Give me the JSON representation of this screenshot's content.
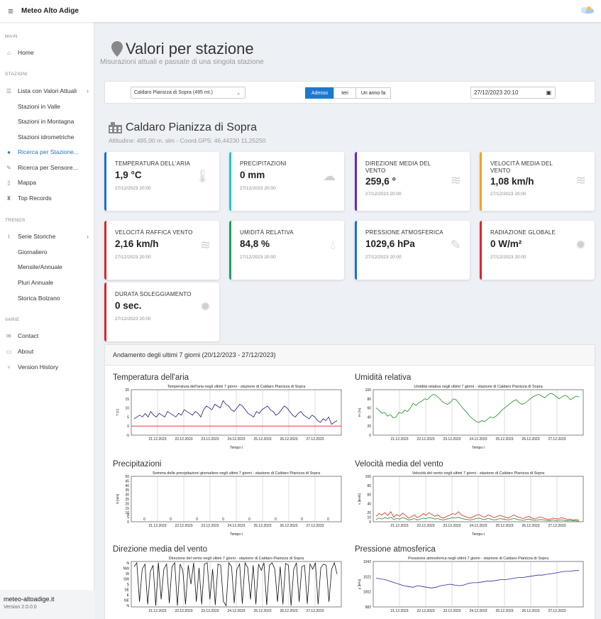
{
  "app": {
    "title": "Meteo Alto Adige"
  },
  "sidebar": {
    "sections": [
      {
        "title": "MAIN"
      },
      {
        "title": "STAZIONI"
      },
      {
        "title": "TRENDS"
      },
      {
        "title": "VARIE"
      }
    ],
    "items": [
      {
        "label": "Home",
        "icon": "home-icon"
      },
      {
        "label": "Lista con Valori Attuali",
        "icon": "list-icon"
      },
      {
        "label": "Stazioni in Valle"
      },
      {
        "label": "Stazioni in Montagna"
      },
      {
        "label": "Stazioni idrometriche"
      },
      {
        "label": "Ricerca per Stazione...",
        "icon": "map-marker-icon",
        "active": true
      },
      {
        "label": "Ricerca per Sensore...",
        "icon": "pen-icon"
      },
      {
        "label": "Mappa",
        "icon": "map-icon"
      },
      {
        "label": "Top Records",
        "icon": "trophy-icon"
      },
      {
        "label": "Serie Storiche",
        "icon": "chart-line-icon"
      },
      {
        "label": "Giornaliero"
      },
      {
        "label": "Mensile/Annuale"
      },
      {
        "label": "Pluri Annuale"
      },
      {
        "label": "Storica Bolzano"
      },
      {
        "label": "Contact",
        "icon": "envelope-icon"
      },
      {
        "label": "About",
        "icon": "laptop-icon"
      },
      {
        "label": "Version History",
        "icon": "branch-icon"
      }
    ],
    "footer": {
      "site": "meteo-altoadige.it",
      "version": "Version 2.0.0.0"
    }
  },
  "page": {
    "title": "Valori per stazione",
    "subtitle": "Misurazioni attuali e passate di una singola stazione"
  },
  "filters": {
    "station_selected": "Caldaro Pianizza di Sopra (495 mt.)",
    "time_buttons": [
      {
        "label": "Adesso",
        "active": true
      },
      {
        "label": "Ieri",
        "active": false
      },
      {
        "label": "Un anno fa",
        "active": false
      }
    ],
    "datetime": "27/12/2023 20:10"
  },
  "station": {
    "name": "Caldaro Pianizza di Sopra",
    "meta": "Altitudine: 495,00 m. slm - Coord.GPS: 46,44230 11,25250"
  },
  "cards": [
    {
      "label": "TEMPERATURA DELL'ARIA",
      "value": "1,9 °C",
      "time": "27/12/2023 20:00",
      "color": "#1e6fd0",
      "icon": "thermometer-icon"
    },
    {
      "label": "PRECIPITAZIONI",
      "value": "0 mm",
      "time": "27/12/2023 20:00",
      "color": "#28c5c9",
      "icon": "cloud-rain-icon"
    },
    {
      "label": "DIREZIONE MEDIA DEL VENTO",
      "value": "259,6 °",
      "time": "27/12/2023 20:00",
      "color": "#6f24b8",
      "icon": "wind-icon"
    },
    {
      "label": "VELOCITÀ MEDIA DEL VENTO",
      "value": "1,08 km/h",
      "time": "27/12/2023 20:00",
      "color": "#f2a41c",
      "icon": "wind-icon"
    },
    {
      "label": "VELOCITÀ RAFFICA VENTO",
      "value": "2,16 km/h",
      "time": "27/12/2023 20:00",
      "color": "#d9272e",
      "icon": "wind-icon"
    },
    {
      "label": "UMIDITÀ RELATIVA",
      "value": "84,8 %",
      "time": "27/12/2023 20:00",
      "color": "#20a35a",
      "icon": "drop-icon"
    },
    {
      "label": "PRESSIONE ATMOSFERICA",
      "value": "1029,6 hPa",
      "time": "27/12/2023 20:00",
      "color": "#1e6fd0",
      "icon": "eyedropper-icon"
    },
    {
      "label": "RADIAZIONE GLOBALE",
      "value": "0 W/m²",
      "time": "27/12/2023 20:00",
      "color": "#d9272e",
      "icon": "sun-icon"
    },
    {
      "label": "DURATA SOLEGGIAMENTO",
      "value": "0 sec.",
      "time": "27/12/2023 20:00",
      "color": "#d9272e",
      "icon": "sun-icon"
    }
  ],
  "charts_panel": {
    "title": "Andamento degli ultimi 7 giorni (20/12/2023 - 27/12/2023)"
  },
  "chart_data": [
    {
      "heading": "Temperatura dell'aria",
      "type": "line",
      "title": "Temperatura dell'aria negli ultimi 7 giorni - stazione di Caldaro Pianizza di Sopra",
      "xlabel": "Tempo t",
      "ylabel": "T [C]",
      "x_ticks": [
        "21.12.2023",
        "22.12.2023",
        "23.12.2023",
        "24.12.2023",
        "25.12.2023",
        "26.12.2023",
        "27.12.2023"
      ],
      "ylim": [
        -5,
        20
      ],
      "y_ticks": [
        -5,
        0,
        5,
        10,
        15,
        20
      ],
      "series": [
        {
          "color": "#1a1a80",
          "values": [
            4,
            5,
            6,
            5,
            7,
            5,
            8,
            6,
            5,
            7,
            6,
            5,
            8,
            7,
            6,
            5,
            7,
            6,
            9,
            8,
            7,
            6,
            8,
            7,
            5,
            9,
            11,
            10,
            9,
            12,
            11,
            10,
            14,
            12,
            11,
            9,
            8,
            10,
            12,
            11,
            9,
            7,
            6,
            5,
            8,
            7,
            9,
            10,
            11,
            9,
            8,
            6,
            7,
            9,
            11,
            10,
            8,
            6,
            5,
            7,
            8,
            6,
            5,
            4,
            6,
            5,
            3,
            2,
            4,
            3,
            5,
            1,
            2,
            3
          ]
        }
      ],
      "hline": {
        "value": 0,
        "color": "#e32222"
      }
    },
    {
      "heading": "Umidità relativa",
      "type": "line",
      "title": "Umidità relativa negli ultimi 7 giorni - stazione di Caldaro Pianizza di Sopra",
      "xlabel": "Tempo t",
      "ylabel": "rH [%]",
      "x_ticks": [
        "21.12.2023",
        "22.12.2023",
        "23.12.2023",
        "24.12.2023",
        "25.12.2023",
        "26.12.2023",
        "27.12.2023"
      ],
      "ylim": [
        0,
        100
      ],
      "y_ticks": [
        0,
        20,
        40,
        60,
        80,
        100
      ],
      "series": [
        {
          "color": "#1e8a1e",
          "values": [
            60,
            55,
            48,
            50,
            42,
            45,
            38,
            40,
            50,
            48,
            55,
            52,
            60,
            70,
            65,
            72,
            75,
            80,
            78,
            85,
            90,
            88,
            82,
            75,
            70,
            68,
            72,
            80,
            78,
            70,
            62,
            55,
            48,
            40,
            35,
            30,
            28,
            32,
            30,
            35,
            40,
            38,
            42,
            48,
            55,
            60,
            65,
            70,
            75,
            78,
            72,
            68,
            70,
            75,
            80,
            85,
            88,
            90,
            86,
            82,
            88,
            92,
            90,
            85,
            80,
            84,
            88,
            85,
            78,
            82,
            86,
            84
          ]
        }
      ]
    },
    {
      "heading": "Precipitazioni",
      "type": "bar",
      "title": "Somma delle precipitazioni giornaliere negli ultimi 7 giorni - stazione di Caldaro Pianizza di Sopra",
      "xlabel": "Tempo t",
      "ylabel": "N [mm]",
      "x_ticks": [
        "21.12.2023",
        "22.12.2023",
        "23.12.2023",
        "24.12.2023",
        "25.12.2023",
        "26.12.2023",
        "27.12.2023"
      ],
      "ylim": [
        0,
        50
      ],
      "y_ticks": [
        0,
        5,
        8,
        10,
        15,
        20,
        25,
        30,
        35,
        40,
        45,
        50
      ],
      "values": [
        0,
        0,
        0,
        0,
        0,
        0,
        0,
        0
      ]
    },
    {
      "heading": "Velocità media del vento",
      "type": "line",
      "title": "Velocità del vento negli ultimi 7 giorni - stazione di Caldaro Pianizza di Sopra",
      "xlabel": "Tempo t",
      "ylabel": "v [km/h]",
      "x_ticks": [
        "21.12.2023",
        "22.12.2023",
        "23.12.2023",
        "24.12.2023",
        "25.12.2023",
        "26.12.2023",
        "27.12.2023"
      ],
      "ylim": [
        0,
        100
      ],
      "y_ticks": [
        0,
        10,
        20,
        40,
        60,
        80,
        100
      ],
      "series": [
        {
          "color": "#e02020",
          "values": [
            12,
            18,
            15,
            20,
            14,
            22,
            10,
            16,
            12,
            19,
            14,
            8,
            11,
            15,
            9,
            12,
            18,
            14,
            20,
            16,
            12,
            15,
            10,
            8,
            12,
            14,
            18,
            16,
            22,
            15,
            12,
            10,
            8,
            11,
            14,
            16,
            12,
            10,
            15,
            13,
            9,
            11,
            14,
            12,
            10,
            8,
            12,
            15,
            11,
            9,
            7,
            10,
            12,
            8,
            6,
            9,
            11,
            8,
            6,
            5,
            8,
            7,
            6,
            9,
            7,
            5,
            6,
            4,
            5,
            3
          ]
        },
        {
          "color": "#1e8a1e",
          "values": [
            5,
            8,
            6,
            9,
            7,
            10,
            5,
            7,
            6,
            9,
            7,
            4,
            5,
            7,
            4,
            6,
            8,
            7,
            9,
            8,
            6,
            7,
            5,
            4,
            6,
            7,
            9,
            8,
            10,
            7,
            6,
            5,
            4,
            5,
            7,
            8,
            6,
            5,
            7,
            6,
            4,
            5,
            7,
            6,
            5,
            4,
            6,
            7,
            5,
            4,
            3,
            5,
            6,
            4,
            3,
            4,
            5,
            4,
            3,
            2,
            4,
            3,
            3,
            4,
            3,
            2,
            3,
            2,
            2,
            1
          ]
        }
      ]
    },
    {
      "heading": "Direzione media del vento",
      "type": "line",
      "title": "Direzione del vento negli ultimi 7 giorni - stazione di Caldaro Pianizza di Sopra",
      "xlabel": "",
      "ylabel": "",
      "x_ticks": [
        "21.12.2023",
        "22.12.2023",
        "23.12.2023",
        "24.12.2023",
        "25.12.2023",
        "26.12.2023",
        "27.12.2023"
      ],
      "y_ticks": [
        "N",
        "NW",
        "W",
        "SW",
        "S",
        "SE",
        "E",
        "NE",
        "N"
      ],
      "ylim": [
        0,
        360
      ],
      "series": [
        {
          "color": "#111111",
          "values": [
            320,
            350,
            40,
            300,
            340,
            20,
            280,
            330,
            10,
            350,
            60,
            300,
            340,
            30,
            320,
            350,
            10,
            340,
            290,
            20,
            330,
            180,
            350,
            40,
            310,
            20,
            340,
            350,
            60,
            300,
            15,
            340,
            330,
            45,
            10,
            350,
            320,
            30,
            300,
            340,
            25,
            350,
            310,
            60,
            330,
            20,
            340,
            290,
            350,
            15,
            330,
            350,
            300,
            40,
            320,
            20,
            345,
            330,
            10,
            300,
            350,
            40,
            320,
            330,
            25,
            340,
            300,
            350,
            20,
            310,
            340,
            330,
            40,
            300,
            350,
            260
          ]
        }
      ]
    },
    {
      "heading": "Pressione atmosferica",
      "type": "line",
      "title": "Pressione atmosferica negli ultimi 7 giorni - stazione di Caldaro Pianizza di Sopra",
      "xlabel": "",
      "ylabel": "p [hPa]",
      "x_ticks": [
        "21.12.2023",
        "22.12.2023",
        "23.12.2023",
        "24.12.2023",
        "25.12.2023",
        "26.12.2023",
        "27.12.2023"
      ],
      "ylim": [
        982,
        1042
      ],
      "y_ticks": [
        982,
        1002,
        1022,
        1042
      ],
      "series": [
        {
          "color": "#2828a0",
          "values": [
            1020,
            1019,
            1018,
            1016,
            1014,
            1012,
            1010,
            1009,
            1008,
            1010,
            1009,
            1008,
            1007,
            1008,
            1010,
            1011,
            1012,
            1011,
            1010,
            1011,
            1013,
            1014,
            1014,
            1015,
            1016,
            1016,
            1017,
            1018,
            1018,
            1019,
            1020,
            1021,
            1021,
            1022,
            1023,
            1024,
            1024,
            1025,
            1026,
            1027,
            1028,
            1029,
            1029,
            1030,
            1030
          ]
        }
      ]
    }
  ]
}
